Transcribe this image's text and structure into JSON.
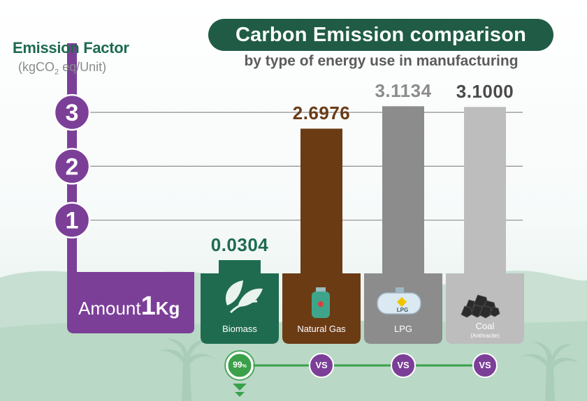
{
  "title": "Carbon Emission comparison",
  "subtitle": "by type of energy use in manufacturing",
  "axis": {
    "label": "Emission Factor",
    "unit_pre": "(kgCO",
    "unit_sub": "2",
    "unit_post": " eq/Unit)",
    "ticks": [
      "1",
      "2",
      "3"
    ]
  },
  "amount": {
    "prefix": "Amount",
    "value": "1",
    "unit": "Kg"
  },
  "badge": {
    "value": "99",
    "unit": "%"
  },
  "vs_label": "VS",
  "colors": {
    "biomass": "#1f6b50",
    "natural_gas": "#6b3b14",
    "lpg": "#8c8c8c",
    "coal": "#bdbdbd",
    "axis": "#7b3f98",
    "compare_line": "#3aa14a"
  },
  "chart_data": {
    "type": "bar",
    "title": "Carbon Emission comparison",
    "subtitle": "by type of energy use in manufacturing",
    "ylabel": "Emission Factor (kgCO2 eq/Unit)",
    "ylim": [
      0,
      3.2
    ],
    "yticks": [
      1,
      2,
      3
    ],
    "categories": [
      "Biomass",
      "Natural Gas",
      "LPG",
      "Coal"
    ],
    "category_notes": [
      "",
      "",
      "",
      "(Anthracite)"
    ],
    "values": [
      0.0304,
      2.6976,
      3.1134,
      3.1
    ],
    "value_labels": [
      "0.0304",
      "2.6976",
      "3.1134",
      "3.1000"
    ],
    "icons": [
      "leaf-icon",
      "gas-cylinder-icon",
      "lpg-tank-icon",
      "coal-icon"
    ],
    "grid": true
  }
}
